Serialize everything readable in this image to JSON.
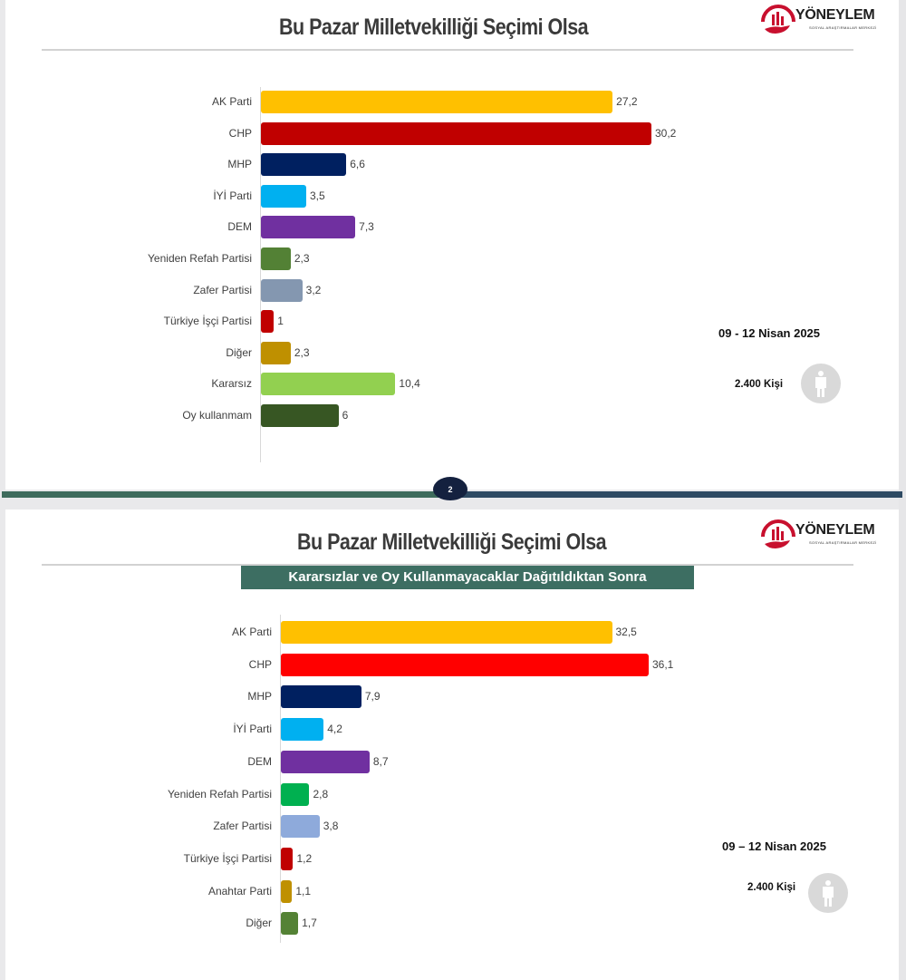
{
  "slides": [
    {
      "title": "Bu Pazar Milletvekilliği Seçimi Olsa",
      "logo": {
        "name": "YÖNEYLEM",
        "subtitle": "SOSYAL ARAŞTIRMALAR MERKEZİ"
      },
      "subtitle": null,
      "date": "09 - 12 Nisan 2025",
      "sample": "2.400 Kişi",
      "page_number": "2"
    },
    {
      "title": "Bu Pazar Milletvekilliği Seçimi Olsa",
      "logo": {
        "name": "YÖNEYLEM",
        "subtitle": "SOSYAL ARAŞTIRMALAR MERKEZİ"
      },
      "subtitle": "Kararsızlar ve Oy Kullanmayacaklar Dağıtıldıktan Sonra",
      "date": "09 – 12 Nisan 2025",
      "sample": "2.400 Kişi"
    }
  ],
  "icons": {
    "person": "person-icon",
    "logo": "yoneylem-logo-icon"
  },
  "chart_data": [
    {
      "type": "bar",
      "orientation": "horizontal",
      "title": "Bu Pazar Milletvekilliği Seçimi Olsa",
      "xlabel": "",
      "ylabel": "",
      "grid": false,
      "categories": [
        "AK Parti",
        "CHP",
        "MHP",
        "İYİ Parti",
        "DEM",
        "Yeniden Refah Partisi",
        "Zafer Partisi",
        "Türkiye İşçi Partisi",
        "Diğer",
        "Kararsız",
        "Oy kullanmam"
      ],
      "values": [
        27.2,
        30.2,
        6.6,
        3.5,
        7.3,
        2.3,
        3.2,
        1,
        2.3,
        10.4,
        6
      ],
      "value_labels": [
        "27,2",
        "30,2",
        "6,6",
        "3,5",
        "7,3",
        "2,3",
        "3,2",
        "1",
        "2,3",
        "10,4",
        "6"
      ],
      "colors": [
        "#ffc000",
        "#c00000",
        "#002060",
        "#00b0f0",
        "#7030a0",
        "#538135",
        "#8497b0",
        "#c00000",
        "#bf9000",
        "#92d050",
        "#375623"
      ],
      "xlim": [
        0,
        30.2
      ]
    },
    {
      "type": "bar",
      "orientation": "horizontal",
      "title": "Bu Pazar Milletvekilliği Seçimi Olsa",
      "subtitle": "Kararsızlar ve Oy Kullanmayacaklar Dağıtıldıktan Sonra",
      "xlabel": "",
      "ylabel": "",
      "grid": false,
      "categories": [
        "AK Parti",
        "CHP",
        "MHP",
        "İYİ Parti",
        "DEM",
        "Yeniden Refah Partisi",
        "Zafer Partisi",
        "Türkiye İşçi Partisi",
        "Anahtar Parti",
        "Diğer"
      ],
      "values": [
        32.5,
        36.1,
        7.9,
        4.2,
        8.7,
        2.8,
        3.8,
        1.2,
        1.1,
        1.7
      ],
      "value_labels": [
        "32,5",
        "36,1",
        "7,9",
        "4,2",
        "8,7",
        "2,8",
        "3,8",
        "1,2",
        "1,1",
        "1,7"
      ],
      "colors": [
        "#ffc000",
        "#ff0000",
        "#002060",
        "#00b0f0",
        "#7030a0",
        "#00b050",
        "#8eaadb",
        "#c00000",
        "#bf9000",
        "#548235"
      ],
      "xlim": [
        0,
        36.1
      ]
    }
  ]
}
